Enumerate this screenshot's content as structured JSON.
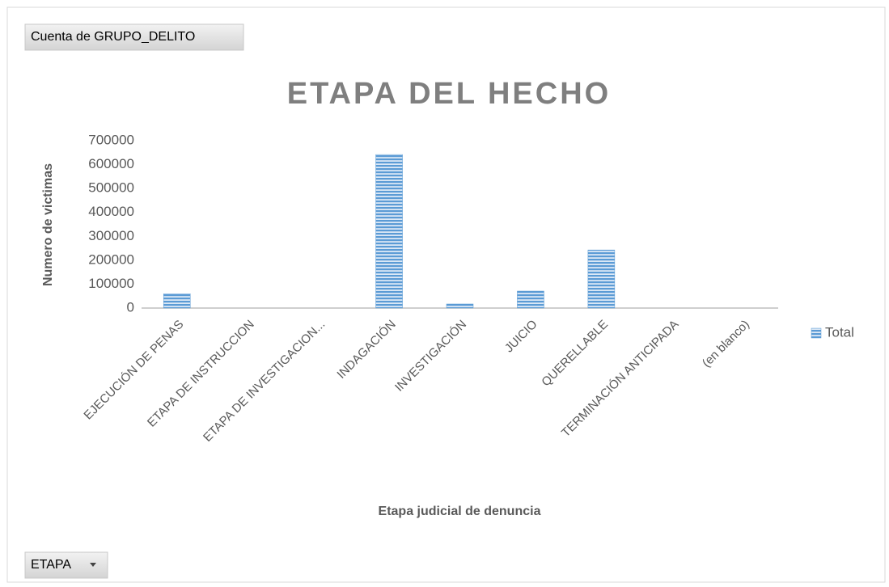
{
  "chart_data": {
    "type": "bar",
    "title": "ETAPA DEL HECHO",
    "x_label": "Etapa judicial de denuncia",
    "y_label": "Numero de victimas",
    "categories": [
      "EJECUCIÓN DE PENAS",
      "ETAPA DE INSTRUCCION",
      "ETAPA DE INVESTIGACION...",
      "INDAGACIÓN",
      "INVESTIGACIÓN",
      "JUICIO",
      "QUERELLABLE",
      "TERMINACIÓN ANTICIPADA",
      "(en blanco)"
    ],
    "series": [
      {
        "name": "Total",
        "color": "#5b9bd5",
        "values": [
          60000,
          0,
          0,
          642000,
          17000,
          71000,
          243000,
          0,
          0
        ]
      }
    ],
    "ylim": [
      0,
      700000
    ],
    "yticks": [
      0,
      100000,
      200000,
      300000,
      400000,
      500000,
      600000,
      700000
    ],
    "grid": false,
    "legend": "right"
  },
  "value_field_button": "Cuenta de GRUPO_DELITO",
  "axis_field_button": "ETAPA"
}
